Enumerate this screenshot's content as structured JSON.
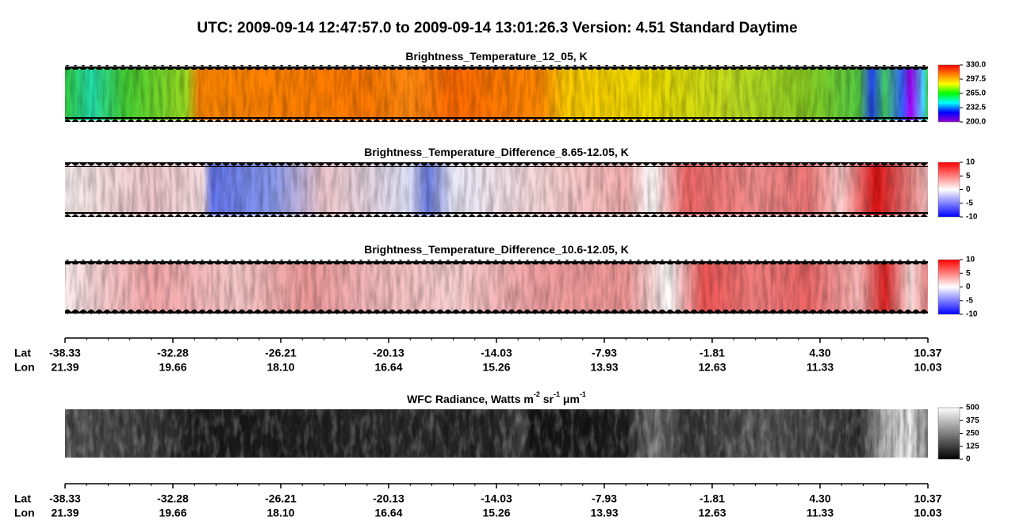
{
  "title": "UTC:  2009-09-14   12:47:57.0  to  2009-09-14   13:01:26.3    Version: 4.51  Standard Daytime",
  "chart_data": [
    {
      "type": "heatmap",
      "title": [
        {
          "text": "Brightness_Temperature_12_05, K"
        }
      ],
      "colorbar": {
        "lim": [
          200,
          330
        ],
        "ticks": [
          {
            "value": 330,
            "label": "330.0"
          },
          297.5,
          {
            "value": 265,
            "label": "265.0"
          },
          232.5,
          {
            "value": 200,
            "label": "200.0"
          }
        ],
        "colors": [
          "#9400d3",
          "#0000ff",
          "#00ffff",
          "#00ff00",
          "#ffff00",
          "#ff8000",
          "#ff0000"
        ]
      }
    },
    {
      "type": "heatmap",
      "title": [
        {
          "text": "Brightness_Temperature_Difference_8.65-12.05, K"
        }
      ],
      "colorbar": {
        "lim": [
          -10,
          10
        ],
        "ticks": [
          10,
          5,
          0,
          -5,
          -10
        ],
        "colors": [
          "#0000ff",
          "#ffffff",
          "#ff0000"
        ]
      }
    },
    {
      "type": "heatmap",
      "title": [
        {
          "text": "Brightness_Temperature_Difference_10.6-12.05, K"
        }
      ],
      "colorbar": {
        "lim": [
          -10,
          10
        ],
        "ticks": [
          10,
          5,
          0,
          -5,
          -10
        ],
        "colors": [
          "#0000ff",
          "#ffffff",
          "#ff0000"
        ]
      }
    },
    {
      "type": "heatmap",
      "title": [
        {
          "text": "WFC Radiance, Watts m"
        },
        {
          "text": "-2",
          "sup": true
        },
        {
          "text": " sr"
        },
        {
          "text": "-1",
          "sup": true
        },
        {
          "text": " μm"
        },
        {
          "text": "-1",
          "sup": true
        }
      ],
      "colorbar": {
        "lim": [
          0,
          500
        ],
        "ticks": [
          500,
          375,
          250,
          125,
          0
        ],
        "colors": [
          "#000000",
          "#ffffff"
        ]
      }
    }
  ],
  "axes": [
    {
      "lat_label": "Lat",
      "lon_label": "Lon",
      "lat_ticks": [
        -38.33,
        -32.28,
        -26.21,
        -20.13,
        -14.03,
        -7.93,
        -1.81,
        {
          "value": 4.3,
          "label": "4.30"
        },
        10.37
      ],
      "lon_ticks": [
        21.39,
        19.66,
        {
          "value": 18.1,
          "label": "18.10"
        },
        16.64,
        15.26,
        13.93,
        12.63,
        11.33,
        10.03
      ]
    },
    {
      "lat_label": "Lat",
      "lon_label": "Lon",
      "lat_ticks": [
        -38.33,
        -32.28,
        -26.21,
        -20.13,
        -14.03,
        -7.93,
        -1.81,
        {
          "value": 4.3,
          "label": "4.30"
        },
        10.37
      ],
      "lon_ticks": [
        21.39,
        19.66,
        {
          "value": 18.1,
          "label": "18.10"
        },
        16.64,
        15.26,
        13.93,
        12.63,
        11.33,
        10.03
      ]
    }
  ]
}
